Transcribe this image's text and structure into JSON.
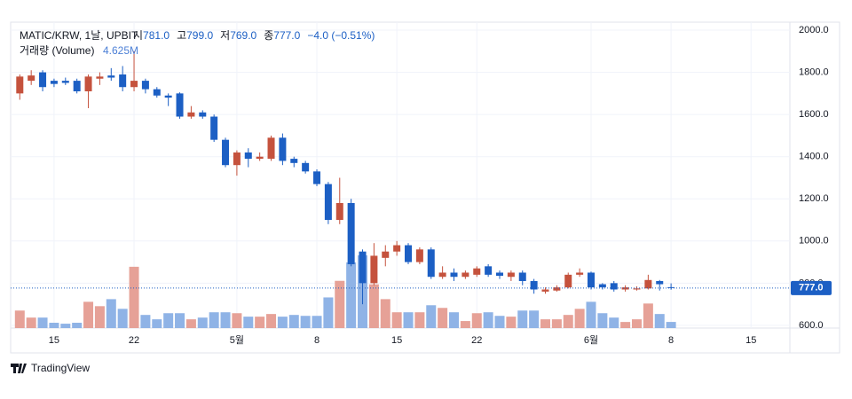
{
  "chart_data": {
    "type": "candlestick",
    "symbol_label": "MATIC/KRW, 1날, UPBIT",
    "ohlc_legend": [
      {
        "label": "시",
        "value": "781.0"
      },
      {
        "label": "고",
        "value": "799.0"
      },
      {
        "label": "저",
        "value": "769.0"
      },
      {
        "label": "종",
        "value": "777.0"
      }
    ],
    "change_label": "−4.0 (−0.51%)",
    "volume_label": "거래량 (Volume)",
    "volume_value_label": "4.625M",
    "last_price": {
      "value": 777,
      "label": "777.0"
    },
    "footer": "TradingView",
    "up_color": "#c5523d",
    "down_color": "#1c5fc4",
    "up_volume_color": "#e6a197",
    "down_volume_color": "#8fb3e6",
    "xlim": [
      -0.8,
      67.4
    ],
    "xticks": [
      {
        "value": 3,
        "label": "15"
      },
      {
        "value": 10,
        "label": "22"
      },
      {
        "value": 19,
        "label": "5월"
      },
      {
        "value": 26,
        "label": "8"
      },
      {
        "value": 33,
        "label": "15"
      },
      {
        "value": 40,
        "label": "22"
      },
      {
        "value": 50,
        "label": "6월"
      },
      {
        "value": 57,
        "label": "8"
      },
      {
        "value": 64,
        "label": "15"
      }
    ],
    "ylim": [
      587,
      2038
    ],
    "yticks": [
      {
        "value": 600,
        "label": "600.0"
      },
      {
        "value": 800,
        "label": "800.0"
      },
      {
        "value": 1000,
        "label": "1000.0"
      },
      {
        "value": 1200,
        "label": "1200.0"
      },
      {
        "value": 1400,
        "label": "1400.0"
      },
      {
        "value": 1600,
        "label": "1600.0"
      },
      {
        "value": 1800,
        "label": "1800.0"
      },
      {
        "value": 2000,
        "label": "2000.0"
      }
    ],
    "grid": true,
    "open": [
      1700,
      1760,
      1800,
      1760,
      1760,
      1760,
      1710,
      1770,
      1785,
      1790,
      1730,
      1760,
      1720,
      1690,
      1700,
      1590,
      1610,
      1590,
      1480,
      1360,
      1420,
      1390,
      1390,
      1490,
      1390,
      1370,
      1330,
      1270,
      1100,
      1180,
      950,
      800,
      920,
      950,
      980,
      900,
      960,
      830,
      850,
      830,
      840,
      880,
      850,
      830,
      850,
      810,
      760,
      765,
      780,
      840,
      850,
      795,
      800,
      770,
      770,
      775,
      810,
      781
    ],
    "high": [
      1790,
      1810,
      1810,
      1770,
      1775,
      1770,
      1790,
      1800,
      1820,
      1830,
      1900,
      1770,
      1730,
      1700,
      1705,
      1640,
      1620,
      1600,
      1490,
      1430,
      1440,
      1420,
      1500,
      1510,
      1400,
      1380,
      1340,
      1280,
      1300,
      1200,
      960,
      990,
      980,
      1000,
      990,
      970,
      970,
      880,
      870,
      860,
      880,
      890,
      860,
      860,
      860,
      820,
      780,
      790,
      850,
      870,
      855,
      800,
      810,
      790,
      785,
      840,
      815,
      799
    ],
    "low": [
      1670,
      1740,
      1710,
      1730,
      1740,
      1700,
      1630,
      1740,
      1760,
      1710,
      1710,
      1700,
      1680,
      1640,
      1580,
      1580,
      1580,
      1470,
      1350,
      1310,
      1350,
      1380,
      1380,
      1360,
      1350,
      1320,
      1260,
      1080,
      1080,
      880,
      700,
      790,
      880,
      930,
      890,
      890,
      820,
      820,
      810,
      820,
      830,
      830,
      820,
      810,
      790,
      750,
      750,
      760,
      775,
      830,
      770,
      770,
      760,
      760,
      765,
      770,
      765,
      769
    ],
    "close": [
      1780,
      1785,
      1730,
      1745,
      1750,
      1710,
      1780,
      1780,
      1775,
      1730,
      1760,
      1720,
      1690,
      1680,
      1590,
      1610,
      1590,
      1480,
      1360,
      1420,
      1390,
      1400,
      1490,
      1380,
      1370,
      1330,
      1270,
      1100,
      1180,
      890,
      800,
      930,
      950,
      980,
      900,
      960,
      830,
      850,
      830,
      850,
      870,
      840,
      835,
      850,
      810,
      770,
      770,
      780,
      840,
      850,
      780,
      780,
      770,
      780,
      775,
      815,
      795,
      777
    ],
    "volume": [
      13.2,
      7.9,
      7.9,
      4.0,
      3.3,
      4.0,
      19.8,
      16.5,
      21.8,
      14.5,
      46.2,
      9.9,
      6.6,
      11.2,
      11.2,
      6.6,
      7.9,
      11.9,
      11.9,
      11.2,
      8.6,
      8.6,
      10.6,
      8.6,
      9.9,
      9.2,
      9.2,
      23.1,
      35.6,
      49.5,
      54.8,
      33.0,
      21.8,
      11.9,
      11.9,
      11.9,
      17.2,
      15.2,
      11.9,
      5.3,
      11.2,
      11.9,
      9.2,
      8.6,
      13.2,
      13.2,
      6.6,
      6.6,
      9.9,
      14.5,
      19.8,
      11.2,
      7.9,
      4.6,
      6.6,
      18.5,
      10.6,
      4.625
    ]
  }
}
